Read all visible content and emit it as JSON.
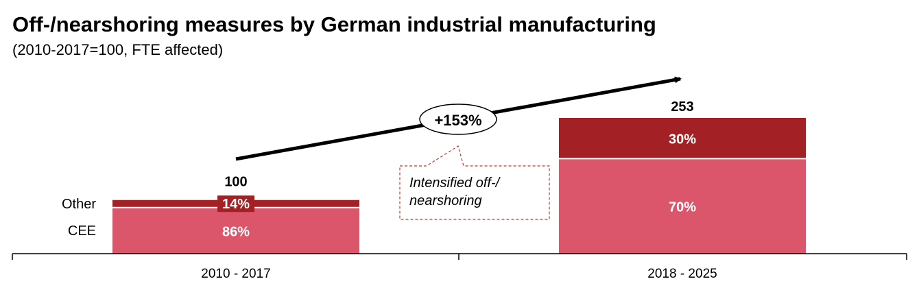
{
  "title": "Off-/nearshoring measures by German industrial manufacturing",
  "subtitle": "(2010-2017=100, FTE affected)",
  "colors": {
    "cee": "#dc566b",
    "other": "#a32024",
    "axis": "#000000",
    "callout_border": "#c0392b"
  },
  "chart_data": {
    "type": "bar",
    "stacked": true,
    "categories": [
      "2010 - 2017",
      "2018 - 2025"
    ],
    "totals": [
      100,
      253
    ],
    "series": [
      {
        "name": "CEE",
        "shares": [
          86,
          70
        ],
        "labels": [
          "86%",
          "70%"
        ]
      },
      {
        "name": "Other",
        "shares": [
          14,
          30
        ],
        "labels": [
          "14%",
          "30%"
        ]
      }
    ],
    "total_labels": [
      "100",
      "253"
    ],
    "change_label": "+153%",
    "callout": "Intensified off-/ nearshoring",
    "grid": false,
    "ylim": [
      0,
      253
    ]
  }
}
